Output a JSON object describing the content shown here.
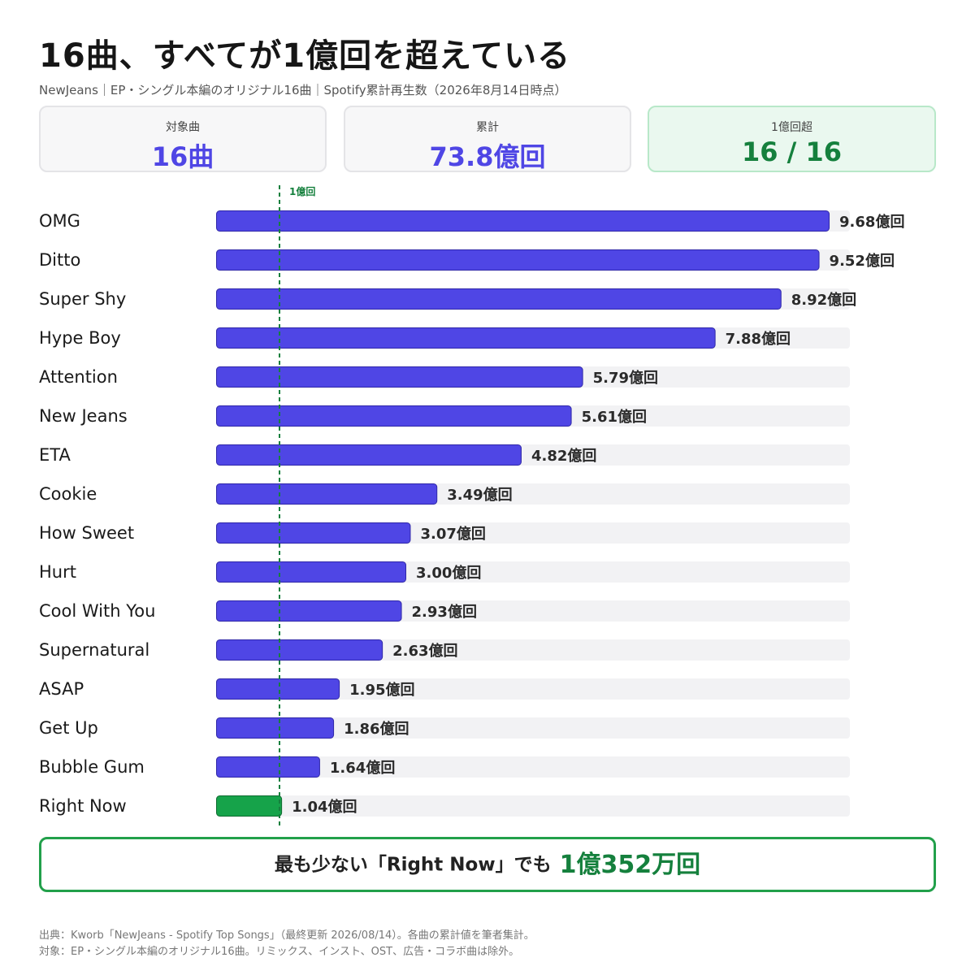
{
  "header": {
    "title": "16曲、すべてが1億回を超えている",
    "subtitle": "NewJeans｜EP・シングル本編のオリジナル16曲｜Spotify累計再生数（2026年8月14日時点）"
  },
  "cards": [
    {
      "label": "対象曲",
      "value": "16曲"
    },
    {
      "label": "累計",
      "value": "73.8億回"
    },
    {
      "label": "1億回超",
      "value": "16 / 16"
    }
  ],
  "chart_data": {
    "type": "bar",
    "orientation": "horizontal",
    "unit": "億回",
    "reference_line": {
      "value": 1.0,
      "label": "1億回"
    },
    "xlim": [
      0,
      10
    ],
    "categories": [
      "OMG",
      "Ditto",
      "Super Shy",
      "Hype Boy",
      "Attention",
      "New Jeans",
      "ETA",
      "Cookie",
      "How Sweet",
      "Hurt",
      "Cool With You",
      "Supernatural",
      "ASAP",
      "Get Up",
      "Bubble Gum",
      "Right Now"
    ],
    "values": [
      9.68,
      9.52,
      8.92,
      7.88,
      5.79,
      5.61,
      4.82,
      3.49,
      3.07,
      3.0,
      2.93,
      2.63,
      1.95,
      1.86,
      1.64,
      1.04
    ],
    "value_labels": [
      "9.68億回",
      "9.52億回",
      "8.92億回",
      "7.88億回",
      "5.79億回",
      "5.61億回",
      "4.82億回",
      "3.49億回",
      "3.07億回",
      "3.00億回",
      "2.93億回",
      "2.63億回",
      "1.95億回",
      "1.86億回",
      "1.64億回",
      "1.04億回"
    ],
    "highlight_index": 15,
    "colors": {
      "bar": "#4f46e5",
      "highlight": "#16a34a",
      "track": "#f2f2f4",
      "reference": "#15803d"
    }
  },
  "callout": {
    "text": "最も少ない「Right Now」でも",
    "value": "1億352万回"
  },
  "notes": [
    "出典：Kworb「NewJeans - Spotify Top Songs」（最終更新 2026/08/14）。各曲の累計値を筆者集計。",
    "対象：EP・シングル本編のオリジナル16曲。リミックス、インスト、OST、広告・コラボ曲は除外。"
  ]
}
